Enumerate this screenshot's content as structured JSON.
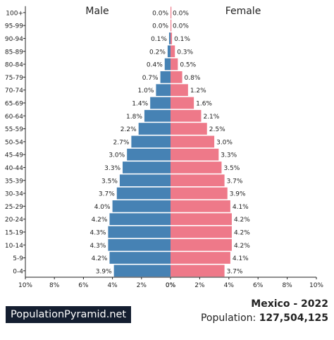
{
  "chart_data": {
    "type": "bar",
    "orientation": "horizontal-pyramid",
    "left_title": "Male",
    "right_title": "Female",
    "categories": [
      "0-4",
      "5-9",
      "10-14",
      "15-19",
      "20-24",
      "25-29",
      "30-34",
      "35-39",
      "40-44",
      "45-49",
      "50-54",
      "55-59",
      "60-64",
      "65-69",
      "70-74",
      "75-79",
      "80-84",
      "85-89",
      "90-94",
      "95-99",
      "100+"
    ],
    "series": [
      {
        "name": "Male",
        "color": "#4682b4",
        "values": [
          3.9,
          4.2,
          4.3,
          4.3,
          4.2,
          4.0,
          3.7,
          3.5,
          3.3,
          3.0,
          2.7,
          2.2,
          1.8,
          1.4,
          1.0,
          0.7,
          0.4,
          0.2,
          0.1,
          0.0,
          0.0
        ],
        "labels": [
          "3.9%",
          "4.2%",
          "4.3%",
          "4.3%",
          "4.2%",
          "4.0%",
          "3.7%",
          "3.5%",
          "3.3%",
          "3.0%",
          "2.7%",
          "2.2%",
          "1.8%",
          "1.4%",
          "1.0%",
          "0.7%",
          "0.4%",
          "0.2%",
          "0.1%",
          "0.0%",
          "0.0%"
        ]
      },
      {
        "name": "Female",
        "color": "#ee7989",
        "values": [
          3.7,
          4.1,
          4.2,
          4.2,
          4.2,
          4.1,
          3.9,
          3.7,
          3.5,
          3.3,
          3.0,
          2.5,
          2.1,
          1.6,
          1.2,
          0.8,
          0.5,
          0.3,
          0.1,
          0.0,
          0.0
        ],
        "labels": [
          "3.7%",
          "4.1%",
          "4.2%",
          "4.2%",
          "4.2%",
          "4.1%",
          "3.9%",
          "3.7%",
          "3.5%",
          "3.3%",
          "3.0%",
          "2.5%",
          "2.1%",
          "1.6%",
          "1.2%",
          "0.8%",
          "0.5%",
          "0.3%",
          "0.1%",
          "0.0%",
          "0.0%"
        ]
      }
    ],
    "xlim": [
      0,
      10
    ],
    "left_ticks": [
      "10%",
      "8%",
      "6%",
      "4%",
      "2%",
      "0%"
    ],
    "right_ticks": [
      "0%",
      "2%",
      "4%",
      "6%",
      "8%",
      "10%"
    ],
    "grid": false
  },
  "brand": "PopulationPyramid.net",
  "title": "Mexico - 2022",
  "population_label": "Population:",
  "population_value": "127,504,125"
}
